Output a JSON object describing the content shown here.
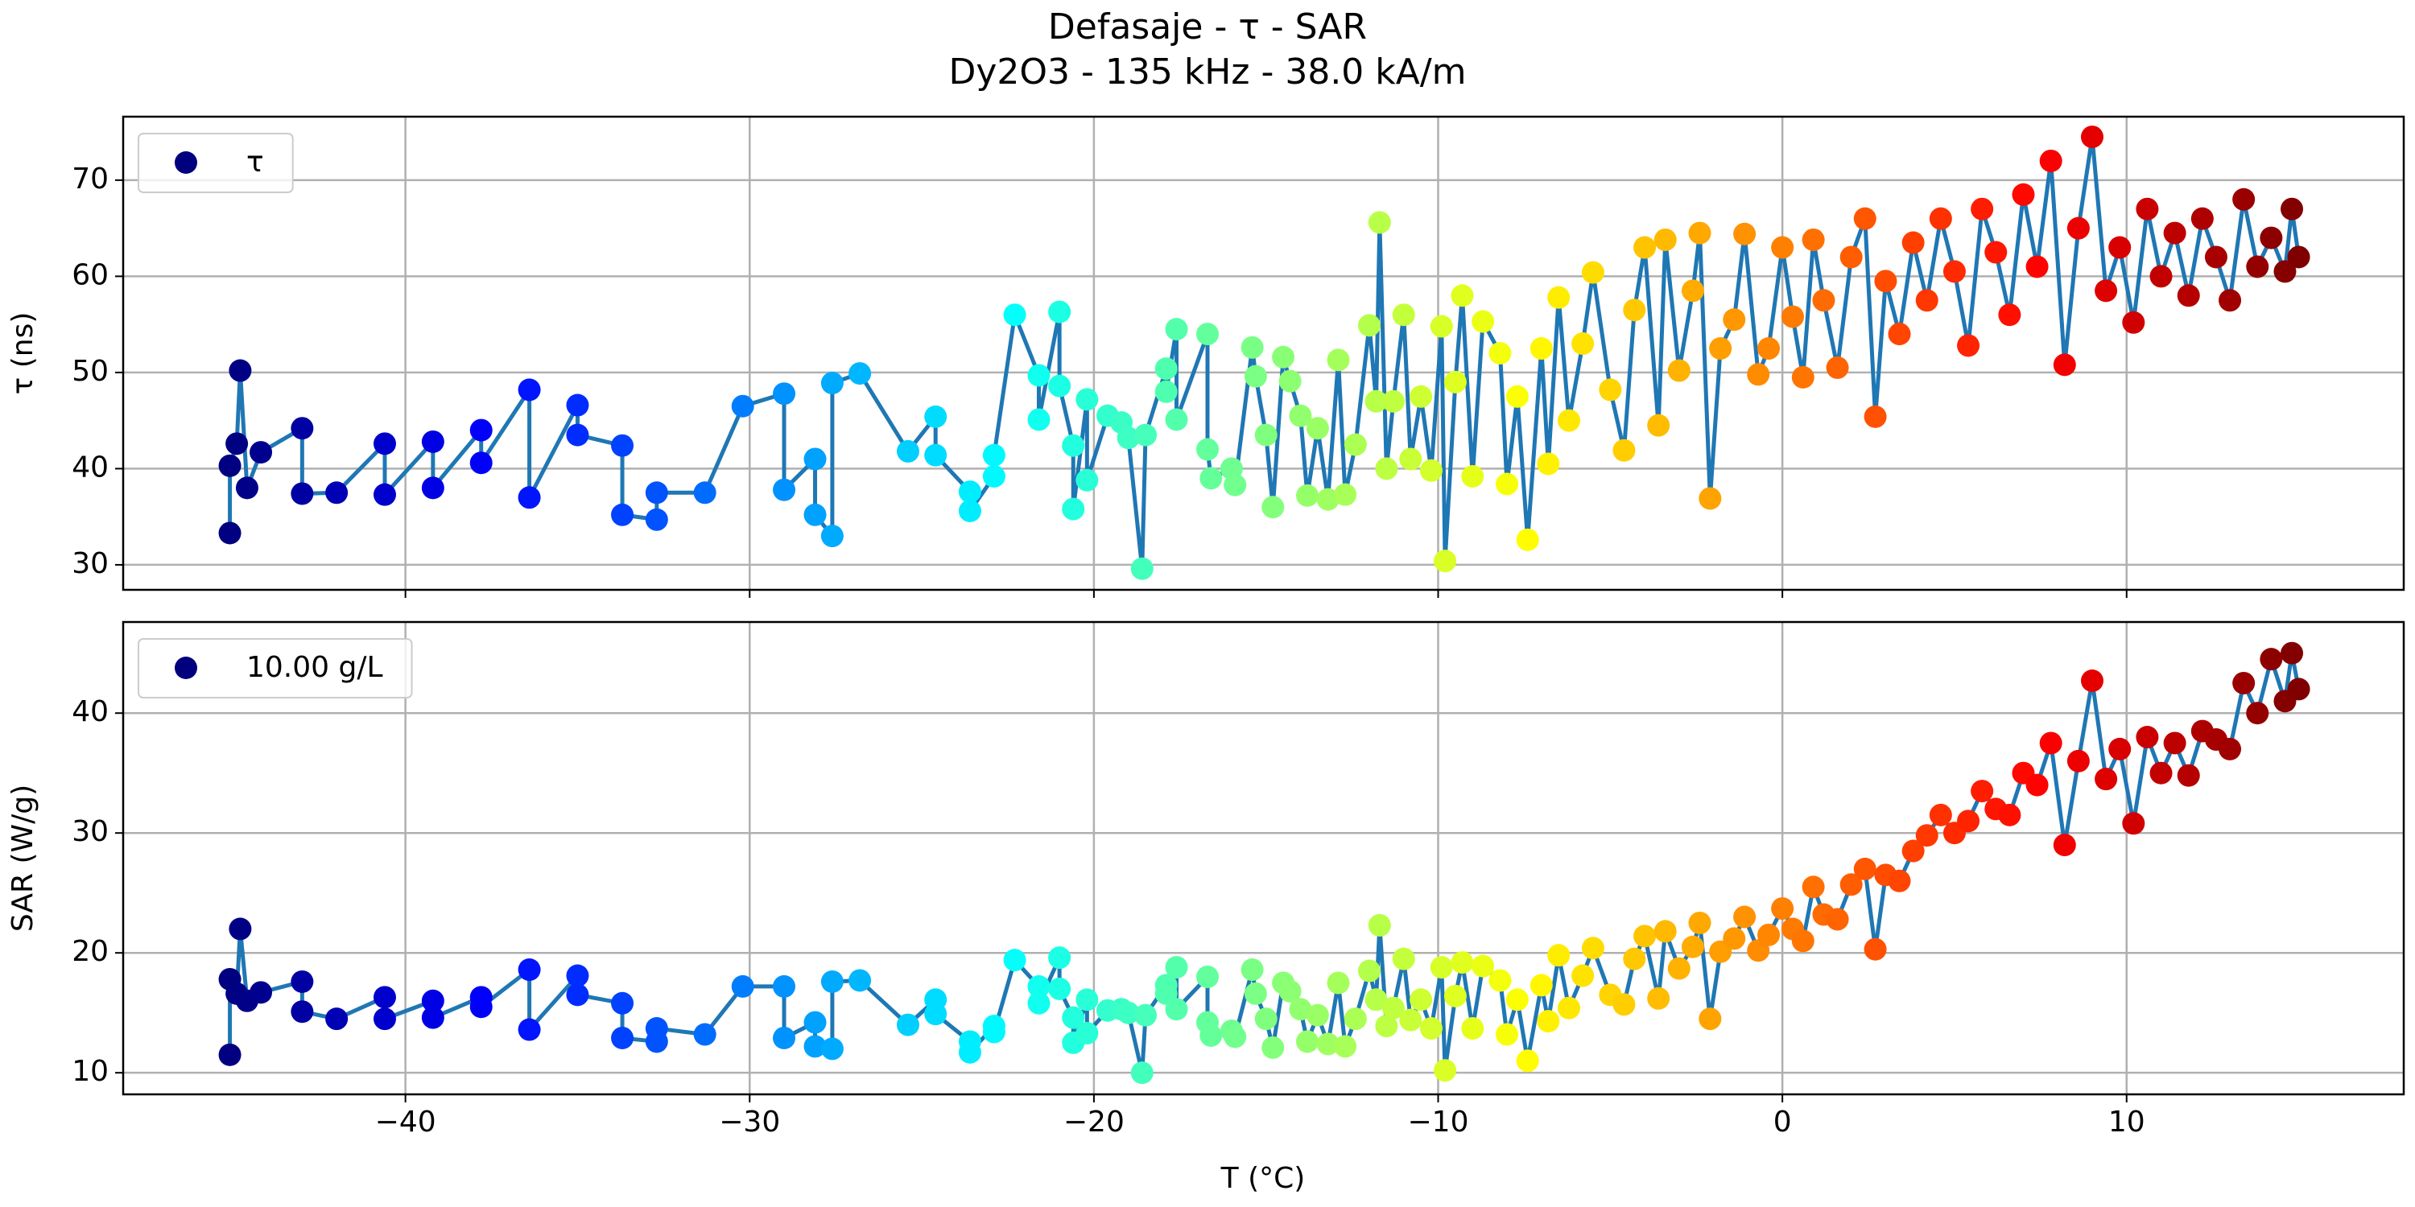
{
  "chart_data": [
    {
      "type": "scatter",
      "title": "Defasaje - τ - SAR",
      "subtitle": "Dy2O3 - 135 kHz - 38.0 kA/m",
      "ylabel": "τ (ns)",
      "xlim": [
        -48.2,
        18.05
      ],
      "ylim": [
        27.4,
        76.6
      ],
      "yticks": [
        30,
        40,
        50,
        60,
        70
      ],
      "grid": true,
      "legend": "upper left",
      "marker_colormap": "jet",
      "line_color": "#1f77b4",
      "legend_marker_color": "#00007f",
      "x": [
        -45.1,
        -45.1,
        -44.9,
        -44.8,
        -44.6,
        -44.2,
        -43.0,
        -43.0,
        -42.0,
        -40.6,
        -40.6,
        -39.2,
        -39.2,
        -37.8,
        -37.8,
        -36.4,
        -36.4,
        -35.0,
        -35.0,
        -33.7,
        -33.7,
        -32.7,
        -32.7,
        -31.3,
        -30.2,
        -29.0,
        -29.0,
        -28.1,
        -28.1,
        -27.6,
        -27.6,
        -26.8,
        -25.4,
        -24.6,
        -24.6,
        -23.6,
        -23.6,
        -22.9,
        -22.9,
        -22.3,
        -21.6,
        -21.6,
        -21.0,
        -21.0,
        -20.6,
        -20.6,
        -20.2,
        -20.2,
        -19.6,
        -19.2,
        -19.0,
        -18.6,
        -18.5,
        -17.9,
        -17.9,
        -17.6,
        -17.6,
        -16.7,
        -16.7,
        -16.6,
        -16.0,
        -15.9,
        -15.4,
        -15.3,
        -15.0,
        -14.8,
        -14.5,
        -14.3,
        -14.0,
        -13.8,
        -13.5,
        -13.2,
        -12.9,
        -12.7,
        -12.4,
        -12.0,
        -11.8,
        -11.7,
        -11.5,
        -11.3,
        -11.0,
        -10.8,
        -10.5,
        -10.2,
        -9.9,
        -9.8,
        -9.5,
        -9.3,
        -9.0,
        -8.7,
        -8.2,
        -8.0,
        -7.7,
        -7.4,
        -7.0,
        -6.8,
        -6.5,
        -6.2,
        -5.8,
        -5.5,
        -5.0,
        -4.6,
        -4.3,
        -4.0,
        -3.6,
        -3.4,
        -3.0,
        -2.6,
        -2.4,
        -2.1,
        -1.8,
        -1.4,
        -1.1,
        -0.7,
        -0.4,
        0.0,
        0.3,
        0.6,
        0.9,
        1.2,
        1.6,
        2.0,
        2.4,
        2.7,
        3.0,
        3.4,
        3.8,
        4.2,
        4.6,
        5.0,
        5.4,
        5.8,
        6.2,
        6.6,
        7.0,
        7.4,
        7.8,
        8.2,
        8.6,
        9.0,
        9.4,
        9.8,
        10.2,
        10.6,
        11.0,
        11.4,
        11.8,
        12.2,
        12.6,
        13.0,
        13.4,
        13.8,
        14.2,
        14.6,
        14.8,
        15.0
      ],
      "series": [
        {
          "name": "τ",
          "values": [
            33.3,
            40.3,
            42.6,
            50.2,
            38.0,
            41.7,
            44.2,
            37.4,
            37.5,
            42.6,
            37.3,
            42.8,
            38.0,
            44.0,
            40.6,
            48.2,
            37.0,
            46.6,
            43.5,
            42.4,
            35.2,
            34.7,
            37.5,
            37.5,
            46.5,
            47.8,
            37.8,
            41.0,
            35.2,
            33.0,
            48.9,
            49.9,
            41.8,
            45.4,
            41.4,
            37.6,
            35.6,
            39.2,
            41.4,
            56.0,
            49.7,
            45.1,
            56.3,
            48.6,
            42.4,
            35.8,
            47.2,
            38.8,
            45.5,
            44.8,
            43.2,
            29.6,
            43.5,
            50.4,
            48.0,
            54.5,
            45.1,
            54.0,
            42.0,
            39.0,
            40.0,
            38.3,
            52.6,
            49.6,
            43.5,
            36.0,
            51.6,
            49.1,
            45.5,
            37.2,
            44.2,
            36.8,
            51.3,
            37.3,
            42.5,
            54.9,
            47.0,
            65.6,
            40.0,
            47.0,
            56.0,
            41.0,
            47.5,
            39.8,
            54.8,
            30.4,
            49.0,
            58.0,
            39.2,
            55.3,
            52.0,
            38.4,
            47.5,
            32.6,
            52.5,
            40.5,
            57.8,
            45.0,
            53.0,
            60.4,
            48.2,
            41.9,
            56.5,
            63.0,
            44.5,
            63.8,
            50.2,
            58.5,
            64.5,
            36.9,
            52.5,
            55.5,
            64.4,
            49.8,
            52.5,
            63.0,
            55.8,
            49.5,
            63.8,
            57.5,
            50.5,
            62.0,
            66.0,
            45.4,
            59.5,
            54.0,
            63.5,
            57.5,
            66.0,
            60.5,
            52.8,
            67.0,
            62.5,
            56.0,
            68.5,
            61.0,
            72.0,
            50.8,
            65.0,
            74.5,
            58.5,
            63.0,
            55.2,
            67.0,
            60.0,
            64.5,
            58.0,
            66.0,
            62.0,
            57.5,
            68.0,
            61.0,
            64.0,
            60.5,
            67.0,
            62.0
          ]
        }
      ]
    },
    {
      "type": "scatter",
      "xlabel": "T (°C)",
      "ylabel": "SAR (W/g)",
      "xlim": [
        -48.2,
        18.05
      ],
      "ylim": [
        8.2,
        47.6
      ],
      "xticks": [
        {
          "value": -40,
          "label": "−40"
        },
        {
          "value": -30,
          "label": "−30"
        },
        {
          "value": -20,
          "label": "−20"
        },
        {
          "value": -10,
          "label": "−10"
        },
        0,
        10
      ],
      "yticks": [
        10,
        20,
        30,
        40
      ],
      "grid": true,
      "legend": "upper left",
      "marker_colormap": "jet",
      "line_color": "#1f77b4",
      "legend_marker_color": "#00007f",
      "x": [
        -45.1,
        -45.1,
        -44.9,
        -44.8,
        -44.6,
        -44.2,
        -43.0,
        -43.0,
        -42.0,
        -40.6,
        -40.6,
        -39.2,
        -39.2,
        -37.8,
        -37.8,
        -36.4,
        -36.4,
        -35.0,
        -35.0,
        -33.7,
        -33.7,
        -32.7,
        -32.7,
        -31.3,
        -30.2,
        -29.0,
        -29.0,
        -28.1,
        -28.1,
        -27.6,
        -27.6,
        -26.8,
        -25.4,
        -24.6,
        -24.6,
        -23.6,
        -23.6,
        -22.9,
        -22.9,
        -22.3,
        -21.6,
        -21.6,
        -21.0,
        -21.0,
        -20.6,
        -20.6,
        -20.2,
        -20.2,
        -19.6,
        -19.2,
        -19.0,
        -18.6,
        -18.5,
        -17.9,
        -17.9,
        -17.6,
        -17.6,
        -16.7,
        -16.7,
        -16.6,
        -16.0,
        -15.9,
        -15.4,
        -15.3,
        -15.0,
        -14.8,
        -14.5,
        -14.3,
        -14.0,
        -13.8,
        -13.5,
        -13.2,
        -12.9,
        -12.7,
        -12.4,
        -12.0,
        -11.8,
        -11.7,
        -11.5,
        -11.3,
        -11.0,
        -10.8,
        -10.5,
        -10.2,
        -9.9,
        -9.8,
        -9.5,
        -9.3,
        -9.0,
        -8.7,
        -8.2,
        -8.0,
        -7.7,
        -7.4,
        -7.0,
        -6.8,
        -6.5,
        -6.2,
        -5.8,
        -5.5,
        -5.0,
        -4.6,
        -4.3,
        -4.0,
        -3.6,
        -3.4,
        -3.0,
        -2.6,
        -2.4,
        -2.1,
        -1.8,
        -1.4,
        -1.1,
        -0.7,
        -0.4,
        0.0,
        0.3,
        0.6,
        0.9,
        1.2,
        1.6,
        2.0,
        2.4,
        2.7,
        3.0,
        3.4,
        3.8,
        4.2,
        4.6,
        5.0,
        5.4,
        5.8,
        6.2,
        6.6,
        7.0,
        7.4,
        7.8,
        8.2,
        8.6,
        9.0,
        9.4,
        9.8,
        10.2,
        10.6,
        11.0,
        11.4,
        11.8,
        12.2,
        12.6,
        13.0,
        13.4,
        13.8,
        14.2,
        14.6,
        14.8,
        15.0
      ],
      "series": [
        {
          "name": "10.00 g/L",
          "values": [
            11.5,
            17.8,
            16.6,
            22.0,
            16.0,
            16.7,
            17.6,
            15.1,
            14.5,
            16.3,
            14.5,
            16.0,
            14.6,
            16.3,
            15.5,
            18.6,
            13.6,
            18.1,
            16.5,
            15.8,
            12.9,
            12.6,
            13.7,
            13.2,
            17.2,
            17.2,
            12.9,
            14.2,
            12.2,
            12.0,
            17.6,
            17.7,
            14.0,
            16.1,
            14.9,
            12.6,
            11.7,
            13.9,
            13.4,
            19.4,
            17.2,
            15.8,
            19.6,
            17.0,
            14.6,
            12.5,
            16.1,
            13.3,
            15.2,
            15.3,
            15.0,
            10.0,
            14.8,
            17.3,
            16.6,
            18.8,
            15.3,
            18.0,
            14.2,
            13.1,
            13.5,
            13.0,
            18.6,
            16.6,
            14.5,
            12.1,
            17.5,
            16.8,
            15.3,
            12.6,
            14.8,
            12.4,
            17.5,
            12.2,
            14.5,
            18.5,
            16.1,
            22.3,
            13.9,
            15.4,
            19.5,
            14.4,
            16.1,
            13.7,
            18.8,
            10.2,
            16.4,
            19.2,
            13.7,
            18.9,
            17.7,
            13.2,
            16.1,
            11.0,
            17.3,
            14.3,
            19.8,
            15.4,
            18.1,
            20.4,
            16.5,
            15.7,
            19.5,
            21.4,
            16.2,
            21.8,
            18.7,
            20.5,
            22.5,
            14.5,
            20.1,
            21.2,
            23.0,
            20.2,
            21.5,
            23.7,
            22.0,
            21.0,
            25.5,
            23.2,
            22.8,
            25.7,
            27.0,
            20.3,
            26.5,
            26.0,
            28.5,
            29.8,
            31.5,
            30.0,
            31.0,
            33.5,
            32.0,
            31.5,
            35.0,
            34.0,
            37.5,
            29.0,
            36.0,
            42.7,
            34.5,
            37.0,
            30.8,
            38.0,
            35.0,
            37.5,
            34.8,
            38.5,
            37.8,
            37.0,
            42.5,
            40.0,
            44.5,
            41.0,
            45.0,
            42.0
          ]
        }
      ]
    }
  ]
}
